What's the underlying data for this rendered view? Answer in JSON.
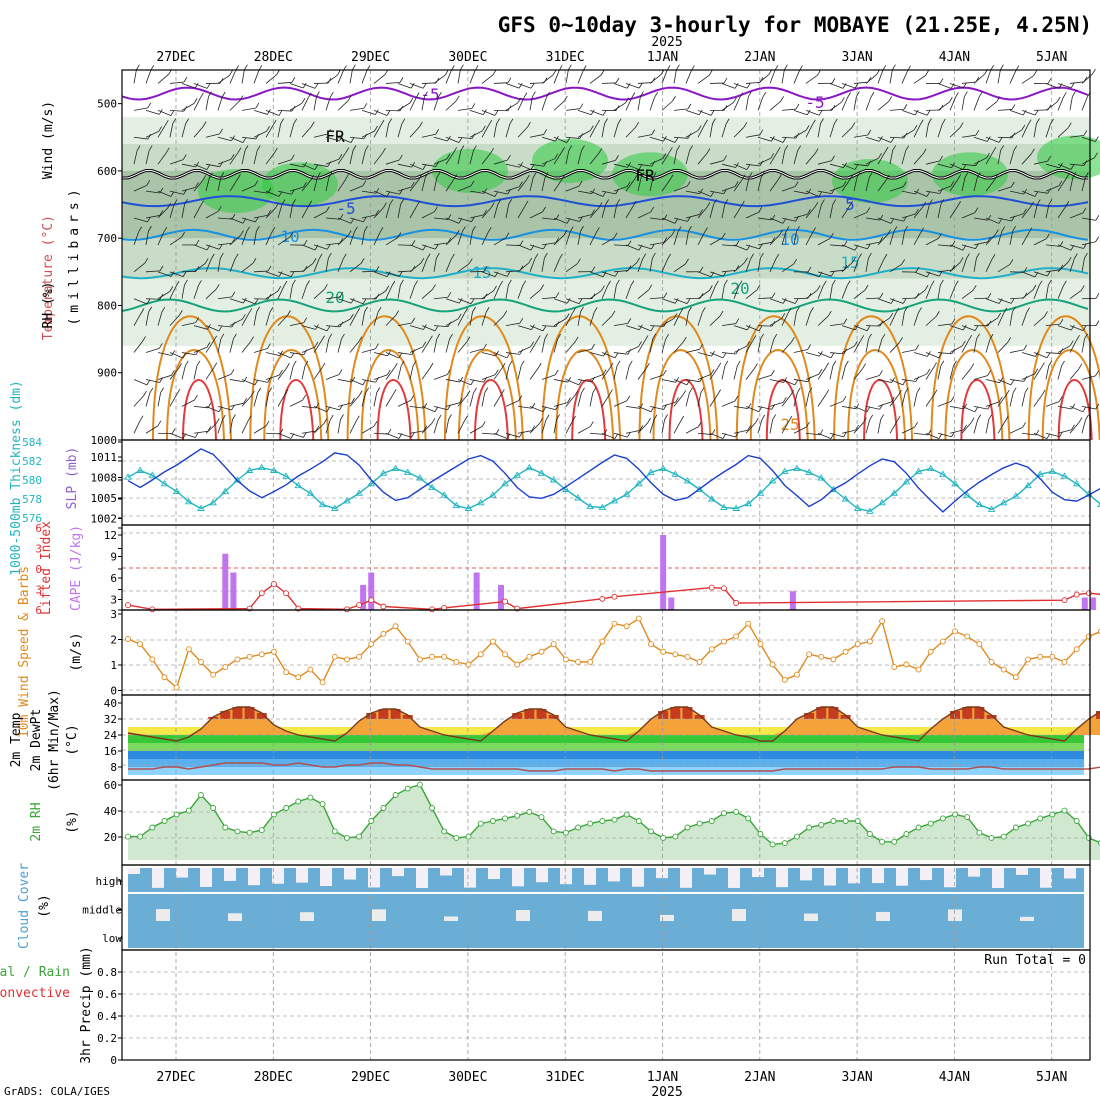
{
  "title": "GFS 0~10day 3-hourly for MOBAYE (21.25E, 4.25N)",
  "year": "2025",
  "dates": [
    "27DEC",
    "28DEC",
    "29DEC",
    "30DEC",
    "31DEC",
    "1JAN",
    "2JAN",
    "3JAN",
    "4JAN",
    "5JAN"
  ],
  "footer": "GrADS: COLA/IGES",
  "run_total": "Run Total = 0",
  "colors": {
    "rh": "#2ecc40",
    "temp_warm": "#e08a1e",
    "temp_hot": "#e23a3a",
    "cold": "#8a17c4",
    "blue": "#1f4fd6",
    "cyan": "#1fb0c8",
    "teal": "#16a37a",
    "cloud": "#6aaed6",
    "rh2m": "#3aa63a",
    "wind": "#e08a1e",
    "slp": "#1a3fcc",
    "thick": "#20b5c0",
    "cape": "#c074ee",
    "li": "#e03030"
  },
  "panels": {
    "upper": {
      "ticks": [
        "500",
        "600",
        "700",
        "800",
        "900",
        "1000"
      ],
      "label_wind": "Wind (m/s)",
      "label_temp": "Temperature (°C)",
      "label_rh": "RH (%)",
      "label_mb": "(millibars)"
    },
    "slp": {
      "ticks_left": [
        "584",
        "582",
        "580",
        "578",
        "576"
      ],
      "ticks_right": [
        "1011",
        "1008",
        "1005",
        "1002"
      ],
      "label_thick": "1000-500mb Thickness (dm)",
      "label_slp": "SLP (mb)"
    },
    "cape": {
      "ticks_left": [
        "6",
        "3",
        "0",
        "3",
        "6"
      ],
      "ticks_right": [
        "12",
        "9",
        "6",
        "3"
      ],
      "label_li": "Lifted Index",
      "label_cape": "CAPE (J/kg)"
    },
    "wind": {
      "ticks": [
        "3",
        "2",
        "1",
        "0"
      ],
      "label": "10m Wind Speed & Barbs",
      "unit": "(m/s)"
    },
    "temp": {
      "ticks": [
        "40",
        "32",
        "24",
        "16",
        "8"
      ],
      "label1": "2m Temp",
      "label2": "2m DewPt",
      "label3": "(6hr Min/Max)",
      "unit": "(°C)"
    },
    "rh2m": {
      "ticks": [
        "60",
        "40",
        "20"
      ],
      "label": "2m RH",
      "unit": "(%)"
    },
    "cloud": {
      "levels": [
        "high",
        "middle",
        "low"
      ],
      "label": "Cloud Cover",
      "unit": "(%)"
    },
    "precip": {
      "ticks": [
        "0.8",
        "0.6",
        "0.4",
        "0.2",
        "0"
      ],
      "label1": "Total / Rain",
      "label2": "Convective",
      "label3": "3hr Precip (mm)"
    }
  },
  "chart_data": [
    {
      "type": "line",
      "title": "GFS 0~10day 3-hourly for MOBAYE (21.25E, 4.25N)",
      "x_start": "2024-12-26T12",
      "x_step_hours": 3,
      "series": [
        {
          "name": "1000-500mb Thickness (dm)",
          "unit": "dm",
          "values": [
            580.3,
            581.0,
            580.5,
            579.6,
            578.8,
            577.7,
            577.0,
            577.6,
            578.8,
            580.0,
            581.0,
            581.3,
            581.0,
            580.4,
            579.4,
            578.6,
            577.4,
            577.0,
            577.8,
            578.6,
            579.6,
            580.7,
            581.2,
            580.8,
            580.2,
            579.2,
            578.4,
            577.3,
            577.0,
            577.6,
            578.4,
            579.6,
            580.5,
            581.3,
            580.7,
            580.0,
            579.0,
            578.1,
            577.2,
            577.1,
            577.8,
            578.5,
            579.6,
            580.8,
            581.2,
            580.6,
            579.9,
            579.0,
            578.0,
            577.1,
            577.0,
            577.5,
            578.6,
            579.9,
            580.9,
            581.2,
            580.8,
            580.2,
            579.0,
            578.0,
            577.0,
            576.7,
            577.6,
            578.6,
            579.8,
            580.9,
            581.2,
            580.6,
            579.6,
            578.4,
            577.4,
            576.9,
            577.6,
            578.3,
            579.4,
            580.6,
            580.9,
            580.4,
            579.6,
            578.5,
            577.4,
            577.0,
            578.0,
            579.0,
            580.2,
            581.0,
            580.6,
            580.0,
            578.8,
            578.1
          ]
        },
        {
          "name": "SLP (mb)",
          "unit": "mb",
          "values": [
            1007.5,
            1006.5,
            1007.6,
            1008.8,
            1009.8,
            1011.0,
            1012.2,
            1011.4,
            1009.5,
            1007.5,
            1006.0,
            1005.0,
            1005.9,
            1006.9,
            1008.2,
            1009.2,
            1010.3,
            1011.6,
            1011.3,
            1009.8,
            1007.6,
            1005.8,
            1004.6,
            1005.0,
            1006.2,
            1007.4,
            1008.5,
            1009.6,
            1010.7,
            1011.2,
            1010.4,
            1008.6,
            1006.5,
            1005.1,
            1004.9,
            1005.5,
            1006.6,
            1007.8,
            1009.0,
            1010.2,
            1011.3,
            1010.8,
            1009.2,
            1007.2,
            1005.5,
            1004.6,
            1005.0,
            1006.3,
            1007.6,
            1008.8,
            1009.9,
            1011.2,
            1010.8,
            1009.0,
            1006.8,
            1005.3,
            1003.7,
            1004.7,
            1006.2,
            1007.2,
            1008.5,
            1009.7,
            1010.7,
            1010.3,
            1008.6,
            1006.4,
            1004.6,
            1002.9,
            1004.5,
            1006.0,
            1007.3,
            1008.4,
            1009.4,
            1010.1,
            1009.5,
            1007.8,
            1005.8,
            1004.7,
            1004.5,
            1005.4,
            1006.4,
            1007.8,
            1009.1,
            1010.3,
            1010.9,
            1009.4,
            1007.0,
            1005.0,
            1003.4,
            1001.8,
            1004.0,
            1005.0,
            1005.1,
            1005.6,
            1007.9
          ]
        },
        {
          "name": "Lifted Index",
          "unit": "K",
          "values": [
            5.3,
            null,
            5.9,
            null,
            null,
            null,
            null,
            null,
            null,
            null,
            5.8,
            3.6,
            2.3,
            3.6,
            5.8,
            null,
            null,
            null,
            5.9,
            5.3,
            4.6,
            5.5,
            null,
            null,
            null,
            5.9,
            5.7,
            null,
            null,
            null,
            null,
            4.8,
            5.8,
            null,
            null,
            null,
            null,
            null,
            null,
            4.4,
            4.1,
            null,
            null,
            null,
            null,
            null,
            null,
            null,
            2.8,
            2.9,
            5.0,
            null,
            null,
            null,
            null,
            null,
            null,
            null,
            null,
            null,
            null,
            null,
            null,
            null,
            null,
            null,
            null,
            null,
            null,
            null,
            null,
            null,
            null,
            null,
            null,
            null,
            null,
            4.6,
            3.8,
            3.6,
            null,
            null,
            null,
            null,
            null,
            null,
            null,
            4.9,
            3.3,
            2.2,
            5.2
          ]
        },
        {
          "name": "CAPE (J/kg)",
          "unit": "J/kg",
          "values": [
            0,
            0,
            0,
            0,
            0,
            0,
            0,
            0,
            0,
            0,
            0,
            0,
            9,
            6,
            0,
            0,
            0,
            0,
            0,
            0,
            0,
            0,
            0,
            0,
            0,
            0,
            0,
            0,
            0,
            4,
            6,
            0,
            0,
            0,
            0,
            0,
            0,
            0,
            0,
            0,
            0,
            0,
            0,
            6,
            0,
            0,
            4,
            0,
            0,
            0,
            0,
            0,
            0,
            0,
            0,
            0,
            0,
            0,
            0,
            0,
            0,
            0,
            0,
            0,
            0,
            0,
            12,
            2,
            0,
            0,
            0,
            0,
            0,
            0,
            0,
            0,
            0,
            0,
            0,
            0,
            0,
            0,
            3,
            0,
            0,
            0,
            0,
            0,
            0,
            0,
            0,
            0,
            0,
            0,
            0,
            0,
            0,
            0,
            0,
            0,
            0,
            0,
            0,
            0,
            0,
            0,
            0,
            0,
            0,
            0,
            0,
            0,
            0,
            0,
            0,
            0,
            0,
            0,
            2,
            2,
            0,
            0,
            0,
            0,
            0,
            0
          ]
        },
        {
          "name": "10m Wind Speed (m/s)",
          "unit": "m/s",
          "values": [
            2.0,
            1.8,
            1.2,
            0.5,
            0.1,
            1.6,
            1.1,
            0.6,
            0.9,
            1.2,
            1.3,
            1.4,
            1.5,
            0.7,
            0.5,
            0.8,
            0.3,
            1.3,
            1.2,
            1.3,
            1.8,
            2.2,
            2.5,
            1.9,
            1.2,
            1.3,
            1.3,
            1.1,
            1.0,
            1.4,
            1.9,
            1.4,
            1.0,
            1.3,
            1.5,
            1.8,
            1.2,
            1.1,
            1.1,
            1.9,
            2.6,
            2.5,
            2.8,
            1.8,
            1.5,
            1.4,
            1.3,
            1.1,
            1.6,
            1.9,
            2.1,
            2.6,
            1.8,
            1.0,
            0.4,
            0.6,
            1.4,
            1.3,
            1.2,
            1.5,
            1.8,
            1.9,
            2.7,
            0.9,
            1.0,
            0.8,
            1.5,
            1.9,
            2.3,
            2.1,
            1.8,
            1.1,
            0.8,
            0.5,
            1.2,
            1.3,
            1.3,
            1.1,
            1.6,
            2.1,
            2.3,
            2.6,
            1.1,
            0.6,
            0.2,
            1.2,
            1.2,
            1.1,
            1.5,
            1.0,
            0.9,
            1.6,
            1.8
          ]
        },
        {
          "name": "2m Temp (°C)",
          "unit": "°C",
          "values": [
            25,
            24,
            23,
            22,
            21,
            23,
            27,
            33,
            36,
            38,
            38,
            35,
            29,
            26,
            24,
            23,
            22,
            21,
            25,
            31,
            35,
            37,
            37,
            34,
            28,
            26,
            24,
            23,
            22,
            21,
            26,
            31,
            35,
            37,
            37,
            34,
            28,
            26,
            24,
            23,
            22,
            21,
            26,
            32,
            36,
            38,
            38,
            34,
            28,
            26,
            24,
            23,
            21,
            21,
            26,
            32,
            35,
            38,
            38,
            34,
            28,
            26,
            24,
            23,
            22,
            21,
            27,
            32,
            36,
            38,
            38,
            34,
            28,
            26,
            24,
            23,
            22,
            21,
            27,
            32,
            36,
            38,
            38,
            34,
            28,
            26,
            24,
            23,
            22,
            21,
            27,
            32,
            36,
            37,
            36,
            33,
            28,
            26,
            24,
            24
          ]
        },
        {
          "name": "2m DewPt (°C)",
          "unit": "°C",
          "values": [
            7,
            7,
            7,
            8,
            8,
            7,
            8,
            9,
            10,
            10,
            10,
            10,
            9,
            9,
            10,
            9,
            8,
            8,
            9,
            9,
            10,
            10,
            9,
            9,
            8,
            7,
            7,
            7,
            7,
            7,
            7,
            7,
            7,
            6,
            6,
            6,
            7,
            7,
            7,
            7,
            6,
            7,
            7,
            6,
            6,
            6,
            6,
            6,
            6,
            6,
            6,
            6,
            6,
            6,
            7,
            7,
            7,
            7,
            7,
            7,
            7,
            7,
            7,
            8,
            8,
            8,
            7,
            7,
            7,
            7,
            8,
            8,
            7,
            7,
            7,
            7,
            7,
            7,
            7,
            7,
            8,
            8,
            8,
            8,
            8,
            7,
            7,
            7
          ]
        },
        {
          "name": "2m RH (%)",
          "unit": "%",
          "values": [
            18,
            18,
            25,
            30,
            35,
            38,
            50,
            40,
            25,
            22,
            21,
            23,
            35,
            40,
            45,
            48,
            43,
            22,
            17,
            18,
            30,
            40,
            50,
            55,
            58,
            40,
            22,
            17,
            18,
            28,
            30,
            32,
            34,
            37,
            33,
            22,
            21,
            25,
            28,
            30,
            31,
            35,
            30,
            22,
            17,
            18,
            25,
            28,
            30,
            36,
            37,
            32,
            20,
            12,
            13,
            18,
            25,
            27,
            30,
            30,
            30,
            20,
            14,
            14,
            20,
            25,
            28,
            32,
            35,
            33,
            21,
            17,
            18,
            25,
            28,
            32,
            35,
            38,
            30,
            17,
            13,
            14,
            22,
            30,
            33,
            35,
            35
          ]
        },
        {
          "name": "3hr Precip (mm)",
          "unit": "mm",
          "values": [
            0,
            0,
            0,
            0,
            0,
            0,
            0,
            0,
            0,
            0
          ]
        }
      ]
    }
  ]
}
